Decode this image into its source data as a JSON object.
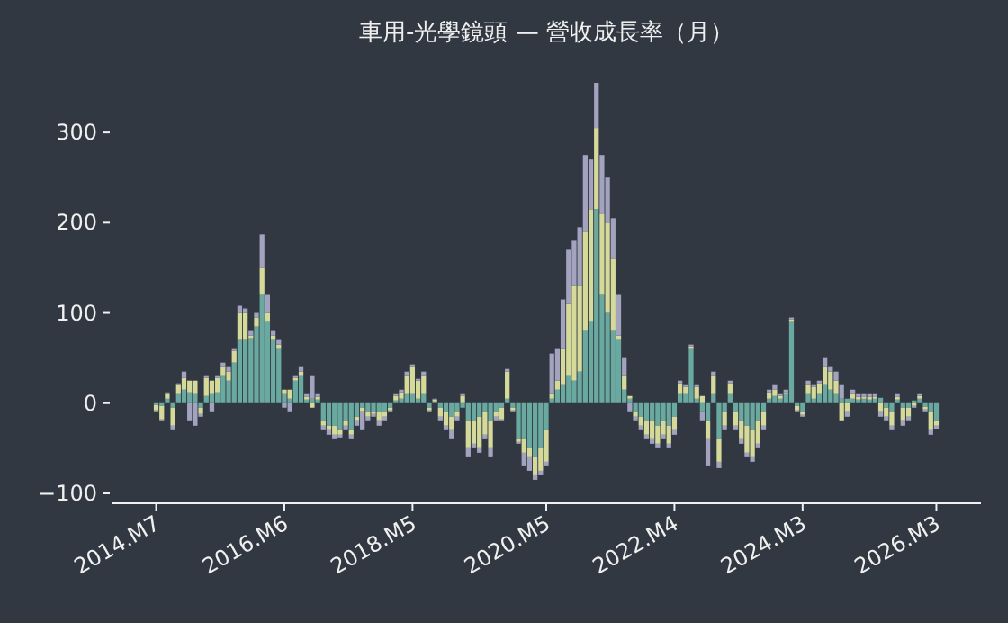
{
  "chart_data": {
    "type": "bar",
    "title": "車用-光學鏡頭 — 營收成長率（月）",
    "stacked": true,
    "categories": [
      "2014.M7",
      null,
      null,
      null,
      null,
      null,
      null,
      null,
      null,
      null,
      null,
      null,
      null,
      null,
      null,
      null,
      null,
      null,
      null,
      null,
      null,
      null,
      null,
      "2016.M6",
      null,
      null,
      null,
      null,
      null,
      null,
      null,
      null,
      null,
      null,
      null,
      null,
      null,
      null,
      null,
      null,
      null,
      null,
      null,
      null,
      null,
      null,
      "2018.M5",
      null,
      null,
      null,
      null,
      null,
      null,
      null,
      null,
      null,
      null,
      null,
      null,
      null,
      null,
      null,
      null,
      null,
      null,
      null,
      null,
      null,
      null,
      null,
      "2020.M5",
      null,
      null,
      null,
      null,
      null,
      null,
      null,
      null,
      null,
      null,
      null,
      null,
      null,
      null,
      null,
      null,
      null,
      null,
      null,
      null,
      null,
      null,
      "2022.M4",
      null,
      null,
      null,
      null,
      null,
      null,
      null,
      null,
      null,
      null,
      null,
      null,
      null,
      null,
      null,
      null,
      null,
      null,
      null,
      null,
      null,
      null,
      "2024.M3",
      null,
      null,
      null,
      null,
      null,
      null,
      null,
      null,
      null,
      null,
      null,
      null,
      null,
      null,
      null,
      null,
      null,
      null,
      null,
      null,
      null,
      null,
      null,
      "2026.M3"
    ],
    "series": [
      {
        "color": "#6aa9a0",
        "values": [
          -2,
          -3,
          5,
          -5,
          10,
          15,
          12,
          10,
          -5,
          8,
          10,
          12,
          30,
          25,
          45,
          70,
          70,
          72,
          85,
          120,
          90,
          70,
          60,
          10,
          5,
          25,
          30,
          4,
          5,
          4,
          -20,
          -25,
          -25,
          -30,
          -20,
          -30,
          -15,
          -5,
          -10,
          -10,
          -10,
          -10,
          -5,
          3,
          5,
          10,
          10,
          5,
          10,
          -5,
          2,
          -5,
          -10,
          -15,
          -10,
          -5,
          -20,
          -20,
          -15,
          -10,
          -20,
          -10,
          -5,
          5,
          -5,
          -40,
          -40,
          -50,
          -60,
          -50,
          -30,
          5,
          15,
          20,
          30,
          25,
          35,
          80,
          90,
          215,
          120,
          100,
          80,
          70,
          15,
          5,
          -10,
          -15,
          -20,
          -20,
          -25,
          -20,
          -25,
          -15,
          10,
          10,
          60,
          5,
          -10,
          -20,
          10,
          -40,
          -10,
          10,
          -10,
          -20,
          -25,
          -30,
          -20,
          -10,
          5,
          8,
          5,
          10,
          90,
          -3,
          -10,
          10,
          5,
          10,
          20,
          15,
          10,
          5,
          5,
          5,
          4,
          5,
          4,
          5,
          6,
          -5,
          -10,
          4,
          -5,
          -5,
          3,
          5,
          -4,
          -10,
          -20
        ]
      },
      {
        "color": "#d5da9a",
        "values": [
          -6,
          -15,
          5,
          -20,
          10,
          13,
          13,
          15,
          -7,
          20,
          15,
          16,
          10,
          10,
          13,
          30,
          30,
          3,
          10,
          30,
          10,
          5,
          5,
          5,
          10,
          3,
          5,
          3,
          -5,
          3,
          -5,
          -5,
          -10,
          -5,
          -5,
          -5,
          -5,
          -5,
          -5,
          -2,
          -10,
          -5,
          -3,
          5,
          7,
          20,
          30,
          20,
          20,
          -3,
          2,
          -10,
          -15,
          -15,
          -5,
          8,
          -30,
          -25,
          -35,
          -25,
          -30,
          -5,
          -13,
          30,
          -3,
          -3,
          -15,
          -10,
          -20,
          -25,
          -35,
          5,
          10,
          40,
          80,
          105,
          95,
          110,
          125,
          90,
          90,
          100,
          80,
          5,
          15,
          3,
          -5,
          -10,
          -15,
          -20,
          -20,
          -15,
          -20,
          -15,
          12,
          8,
          3,
          13,
          8,
          -20,
          20,
          -25,
          -15,
          12,
          -15,
          -20,
          -30,
          -30,
          -25,
          -15,
          7,
          7,
          3,
          2,
          3,
          -5,
          -3,
          10,
          13,
          12,
          20,
          20,
          15,
          -20,
          -10,
          5,
          3,
          2,
          3,
          2,
          -10,
          -10,
          -15,
          3,
          -15,
          -10,
          -3,
          3,
          -3,
          -20,
          -5
        ]
      },
      {
        "color": "#a3a2bf",
        "values": [
          -2,
          -2,
          2,
          -5,
          2,
          7,
          -20,
          -25,
          -3,
          2,
          -10,
          2,
          5,
          5,
          2,
          8,
          5,
          5,
          5,
          37,
          20,
          5,
          5,
          -5,
          -10,
          2,
          5,
          3,
          25,
          3,
          -5,
          -5,
          -5,
          -3,
          -5,
          -5,
          -5,
          -20,
          -5,
          -3,
          -5,
          -5,
          -2,
          2,
          3,
          5,
          3,
          2,
          5,
          -2,
          1,
          -5,
          -5,
          -10,
          -5,
          2,
          -10,
          -5,
          -5,
          -5,
          -10,
          -5,
          -2,
          3,
          -2,
          -2,
          -15,
          -15,
          -5,
          -5,
          -5,
          45,
          35,
          55,
          60,
          50,
          65,
          85,
          55,
          50,
          65,
          50,
          45,
          45,
          20,
          -10,
          -5,
          -5,
          -5,
          -5,
          -5,
          -5,
          -5,
          -5,
          3,
          2,
          2,
          2,
          -10,
          -30,
          5,
          -7,
          -5,
          3,
          -5,
          -5,
          -5,
          -5,
          -5,
          -5,
          3,
          5,
          2,
          3,
          2,
          -2,
          -2,
          5,
          2,
          3,
          10,
          5,
          10,
          15,
          -5,
          5,
          3,
          3,
          3,
          3,
          -5,
          -5,
          -5,
          3,
          -5,
          -5,
          -2,
          2,
          -3,
          -5,
          -4
        ]
      }
    ],
    "ylim": [
      -110,
      355
    ],
    "yticks": [
      -100,
      0,
      100,
      200,
      300
    ],
    "grid": false
  }
}
